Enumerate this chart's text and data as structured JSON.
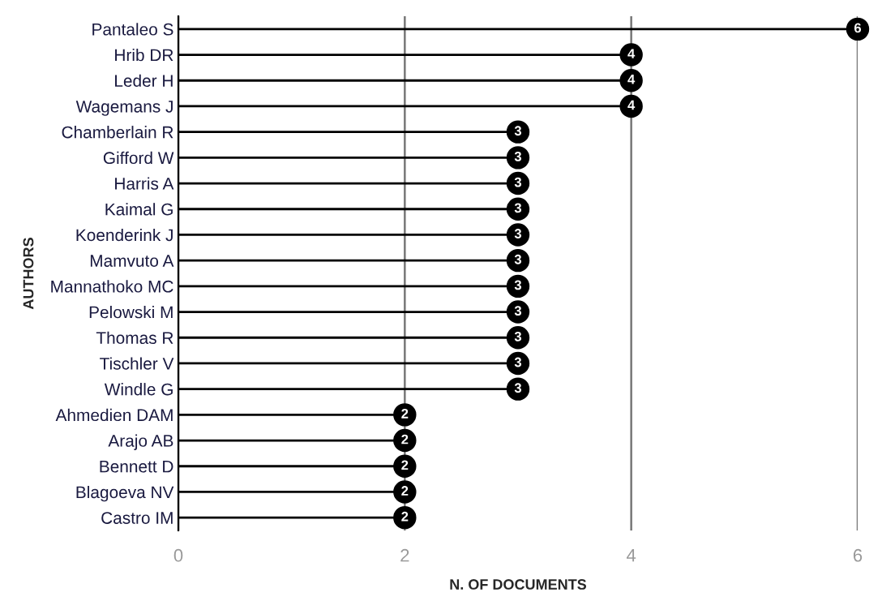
{
  "chart_data": {
    "type": "lollipop",
    "orientation": "horizontal",
    "xlabel": "N. OF DOCUMENTS",
    "ylabel": "AUTHORS",
    "categories": [
      "Pantaleo S",
      "Hrib DR",
      "Leder H",
      "Wagemans J",
      "Chamberlain R",
      "Gifford W",
      "Harris A",
      "Kaimal G",
      "Koenderink J",
      "Mamvuto A",
      "Mannathoko MC",
      "Pelowski M",
      "Thomas R",
      "Tischler V",
      "Windle G",
      "Ahmedien DAM",
      "Arajo AB",
      "Bennett D",
      "Blagoeva NV",
      "Castro IM"
    ],
    "values": [
      6,
      4,
      4,
      4,
      3,
      3,
      3,
      3,
      3,
      3,
      3,
      3,
      3,
      3,
      3,
      2,
      2,
      2,
      2,
      2
    ],
    "color": "#000000",
    "xlim": [
      0,
      6
    ],
    "xticks": [
      0,
      2,
      4,
      6
    ],
    "grid": "x",
    "data_labels": true,
    "marker": "circle"
  }
}
